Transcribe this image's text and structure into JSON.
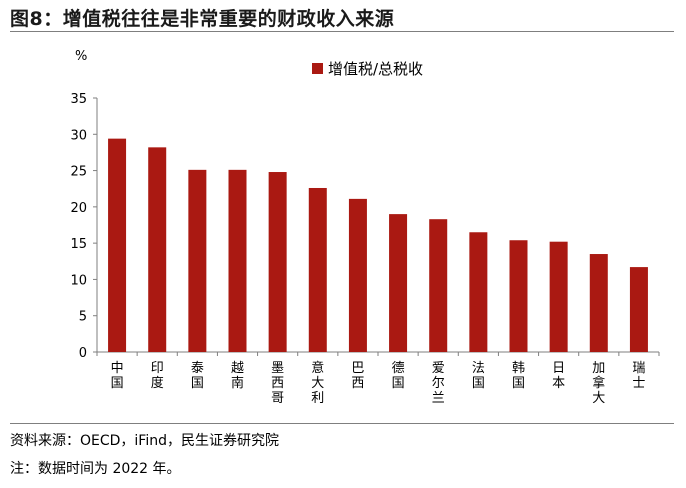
{
  "title": "图8：增值税往往是非常重要的财政收入来源",
  "unit_label": "%",
  "source": "资料来源：OECD，iFind，民生证券研究院",
  "note": "注：数据时间为 2022 年。",
  "colors": {
    "bar": "#aa1912",
    "axis": "#7f7f7f"
  },
  "chart_data": {
    "type": "bar",
    "title": "",
    "xlabel": "",
    "ylabel": "%",
    "ylim": [
      0,
      35
    ],
    "yticks": [
      0,
      5,
      10,
      15,
      20,
      25,
      30,
      35
    ],
    "grid": false,
    "legend_position": "top",
    "categories": [
      "中国",
      "印度",
      "泰国",
      "越南",
      "墨西哥",
      "意大利",
      "巴西",
      "德国",
      "爱尔兰",
      "法国",
      "韩国",
      "日本",
      "加拿大",
      "瑞士"
    ],
    "series": [
      {
        "name": "增值税/总税收",
        "values": [
          29.4,
          28.2,
          25.1,
          25.1,
          24.8,
          22.6,
          21.1,
          19.0,
          18.3,
          16.5,
          15.4,
          15.2,
          13.5,
          11.7
        ]
      }
    ]
  }
}
